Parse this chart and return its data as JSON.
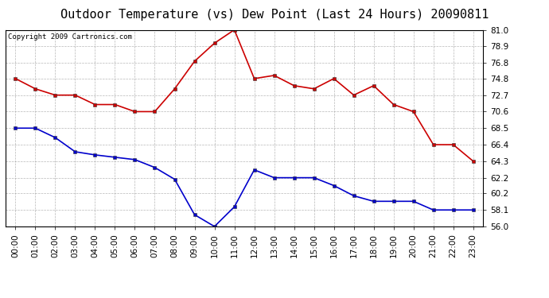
{
  "title": "Outdoor Temperature (vs) Dew Point (Last 24 Hours) 20090811",
  "copyright": "Copyright 2009 Cartronics.com",
  "hours": [
    "00:00",
    "01:00",
    "02:00",
    "03:00",
    "04:00",
    "05:00",
    "06:00",
    "07:00",
    "08:00",
    "09:00",
    "10:00",
    "11:00",
    "12:00",
    "13:00",
    "14:00",
    "15:00",
    "16:00",
    "17:00",
    "18:00",
    "19:00",
    "20:00",
    "21:00",
    "22:00",
    "23:00"
  ],
  "temp": [
    74.8,
    73.5,
    72.7,
    72.7,
    71.5,
    71.5,
    70.6,
    70.6,
    73.5,
    77.0,
    79.3,
    81.0,
    74.8,
    75.2,
    73.9,
    73.5,
    74.8,
    72.7,
    73.9,
    71.5,
    70.6,
    66.4,
    66.4,
    64.3
  ],
  "dew": [
    68.5,
    68.5,
    67.3,
    65.5,
    65.1,
    64.8,
    64.5,
    63.5,
    62.0,
    57.5,
    56.0,
    58.5,
    63.2,
    62.2,
    62.2,
    62.2,
    61.2,
    59.9,
    59.2,
    59.2,
    59.2,
    58.1,
    58.1,
    58.1
  ],
  "ylim": [
    56.0,
    81.0
  ],
  "yticks": [
    56.0,
    58.1,
    60.2,
    62.2,
    64.3,
    66.4,
    68.5,
    70.6,
    72.7,
    74.8,
    76.8,
    78.9,
    81.0
  ],
  "temp_color": "#cc0000",
  "dew_color": "#0000cc",
  "bg_color": "#ffffff",
  "grid_color": "#999999",
  "title_fontsize": 11,
  "tick_fontsize": 7.5,
  "copyright_fontsize": 6.5,
  "marker": "s",
  "marker_size": 2.5,
  "line_width": 1.2
}
